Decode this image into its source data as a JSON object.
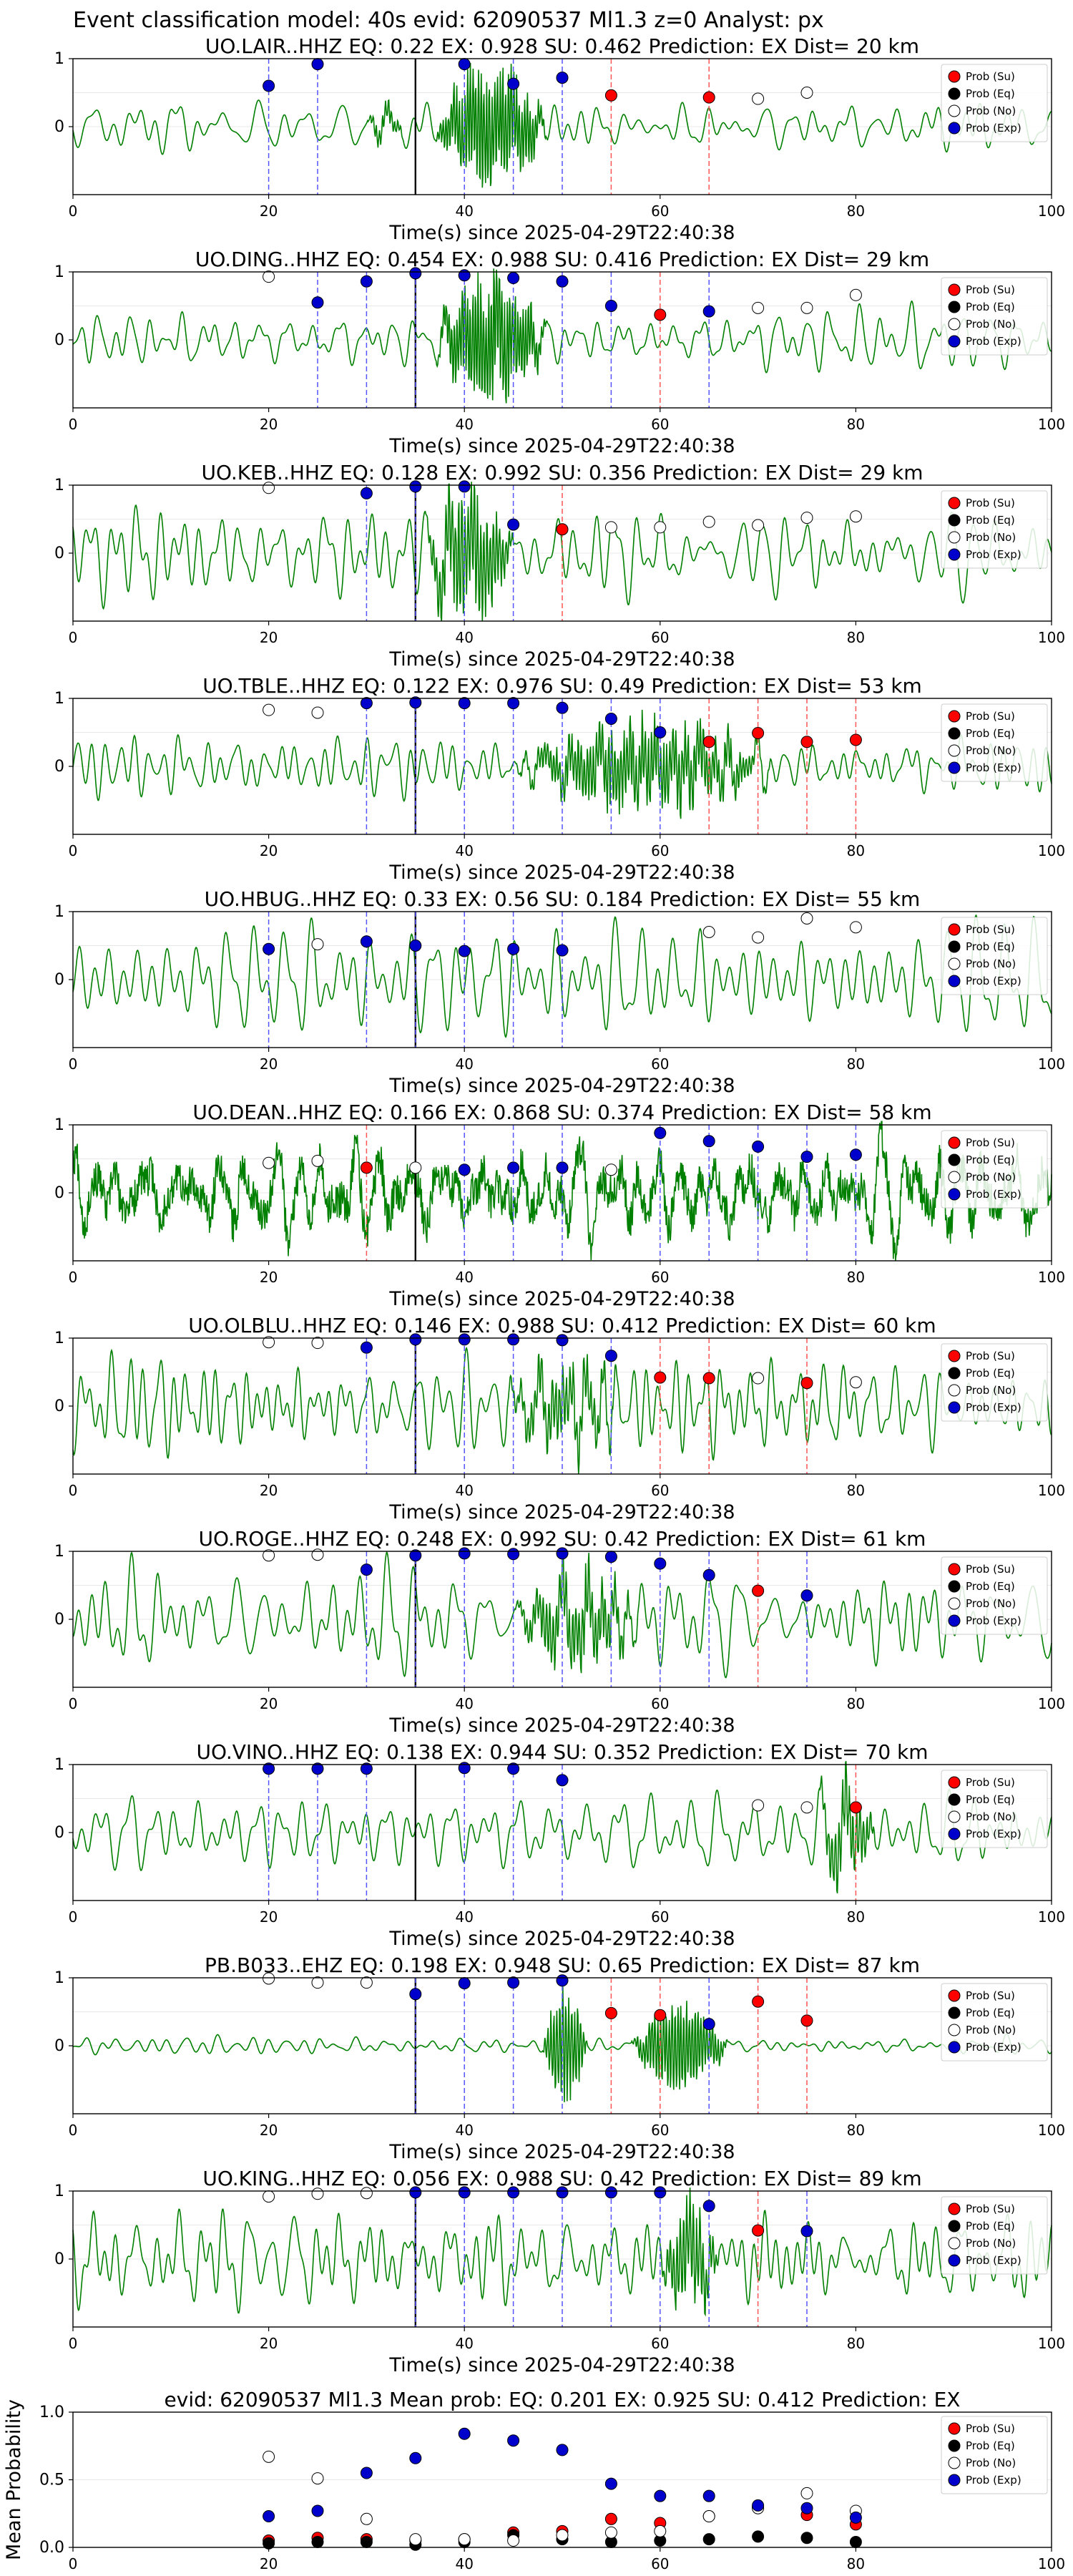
{
  "figure_title": "Event classification model: 40s evid: 62090537 Ml1.3 z=0 Analyst: px",
  "colors": {
    "waveform": "#008000",
    "su": "#ff0000",
    "eq": "#000000",
    "no": "#ffffff",
    "exp": "#0000cc",
    "arrival": "#000000"
  },
  "legend_labels": [
    "Prob (Su)",
    "Prob (Eq)",
    "Prob (No)",
    "Prob (Exp)"
  ],
  "chart_data": [
    {
      "type": "line",
      "title": "UO.LAIR..HHZ   EQ: 0.22  EX: 0.928  SU: 0.462   Prediction: EX    Dist= 20 km",
      "xlabel": "Time(s) since 2025-04-29T22:40:38",
      "xlim": [
        0,
        100
      ],
      "ylim": [
        -1,
        1
      ],
      "xticks": [
        "0",
        "20",
        "40",
        "60",
        "80",
        "100"
      ],
      "yticks": [
        "0",
        "1"
      ],
      "arrival_time": 35,
      "noise_amp": 0.28,
      "seed": 11,
      "envelope": [
        [
          30,
          35,
          0.2,
          0.5
        ],
        [
          37,
          52,
          1.0,
          0.7
        ]
      ],
      "series": [
        {
          "name": "Prob (Su)",
          "x": [
            55,
            65
          ],
          "y": [
            0.46,
            0.43
          ]
        },
        {
          "name": "Prob (Eq)",
          "x": [],
          "y": []
        },
        {
          "name": "Prob (No)",
          "x": [
            70,
            75
          ],
          "y": [
            0.41,
            0.5
          ]
        },
        {
          "name": "Prob (Exp)",
          "x": [
            20,
            25,
            40,
            45,
            50
          ],
          "y": [
            0.6,
            0.92,
            0.92,
            0.63,
            0.72
          ]
        }
      ]
    },
    {
      "type": "line",
      "title": "UO.DING..HHZ   EQ: 0.454  EX: 0.988  SU: 0.416   Prediction: EX    Dist= 29 km",
      "xlabel": "Time(s) since 2025-04-29T22:40:38",
      "xlim": [
        0,
        100
      ],
      "ylim": [
        -1,
        1
      ],
      "xticks": [
        "0",
        "20",
        "40",
        "60",
        "80",
        "100"
      ],
      "yticks": [
        "0",
        "1"
      ],
      "arrival_time": 35,
      "noise_amp": 0.3,
      "seed": 23,
      "envelope": [
        [
          37,
          52,
          1.0,
          0.75
        ]
      ],
      "series": [
        {
          "name": "Prob (Su)",
          "x": [
            60
          ],
          "y": [
            0.37
          ]
        },
        {
          "name": "Prob (Eq)",
          "x": [],
          "y": []
        },
        {
          "name": "Prob (No)",
          "x": [
            20,
            70,
            75,
            80
          ],
          "y": [
            0.93,
            0.47,
            0.47,
            0.66
          ]
        },
        {
          "name": "Prob (Exp)",
          "x": [
            25,
            30,
            35,
            40,
            45,
            50,
            55,
            65
          ],
          "y": [
            0.55,
            0.86,
            0.98,
            0.95,
            0.91,
            0.86,
            0.5,
            0.42
          ]
        }
      ]
    },
    {
      "type": "line",
      "title": "UO.KEB..HHZ   EQ: 0.128  EX: 0.992  SU: 0.356   Prediction: EX    Dist= 29 km",
      "xlabel": "Time(s) since 2025-04-29T22:40:38",
      "xlim": [
        0,
        100
      ],
      "ylim": [
        -1,
        1
      ],
      "xticks": [
        "0",
        "20",
        "40",
        "60",
        "80",
        "100"
      ],
      "yticks": [
        "0",
        "1"
      ],
      "arrival_time": 35,
      "noise_amp": 0.55,
      "seed": 37,
      "envelope": [
        [
          36,
          48,
          1.0,
          0.45
        ]
      ],
      "series": [
        {
          "name": "Prob (Su)",
          "x": [
            50
          ],
          "y": [
            0.35
          ]
        },
        {
          "name": "Prob (Eq)",
          "x": [],
          "y": []
        },
        {
          "name": "Prob (No)",
          "x": [
            20,
            55,
            60,
            65,
            70,
            75,
            80
          ],
          "y": [
            0.96,
            0.38,
            0.38,
            0.46,
            0.41,
            0.52,
            0.54
          ]
        },
        {
          "name": "Prob (Exp)",
          "x": [
            30,
            35,
            40,
            45
          ],
          "y": [
            0.88,
            0.98,
            0.98,
            0.42
          ]
        }
      ]
    },
    {
      "type": "line",
      "title": "UO.TBLE..HHZ   EQ: 0.122  EX: 0.976  SU: 0.49   Prediction: EX    Dist= 53 km",
      "xlabel": "Time(s) since 2025-04-29T22:40:38",
      "xlim": [
        0,
        100
      ],
      "ylim": [
        -1,
        1
      ],
      "xticks": [
        "0",
        "20",
        "40",
        "60",
        "80",
        "100"
      ],
      "yticks": [
        "0",
        "1"
      ],
      "arrival_time": 35,
      "noise_amp": 0.3,
      "seed": 41,
      "envelope": [
        [
          45,
          80,
          0.6,
          0.5
        ]
      ],
      "series": [
        {
          "name": "Prob (Su)",
          "x": [
            65,
            70,
            75,
            80
          ],
          "y": [
            0.36,
            0.49,
            0.36,
            0.39
          ]
        },
        {
          "name": "Prob (Eq)",
          "x": [],
          "y": []
        },
        {
          "name": "Prob (No)",
          "x": [
            20,
            25
          ],
          "y": [
            0.83,
            0.79
          ]
        },
        {
          "name": "Prob (Exp)",
          "x": [
            30,
            35,
            40,
            45,
            50,
            55,
            60
          ],
          "y": [
            0.93,
            0.94,
            0.93,
            0.93,
            0.86,
            0.7,
            0.5
          ]
        }
      ]
    },
    {
      "type": "line",
      "title": "UO.HBUG..HHZ   EQ: 0.33  EX: 0.56  SU: 0.184   Prediction: EX    Dist= 55 km",
      "xlabel": "Time(s) since 2025-04-29T22:40:38",
      "xlim": [
        0,
        100
      ],
      "ylim": [
        -1,
        1
      ],
      "xticks": [
        "0",
        "20",
        "40",
        "60",
        "80",
        "100"
      ],
      "yticks": [
        "0",
        "1"
      ],
      "arrival_time": 35,
      "noise_amp": 0.6,
      "seed": 53,
      "envelope": [],
      "series": [
        {
          "name": "Prob (Su)",
          "x": [],
          "y": []
        },
        {
          "name": "Prob (Eq)",
          "x": [],
          "y": []
        },
        {
          "name": "Prob (No)",
          "x": [
            25,
            65,
            70,
            75,
            80
          ],
          "y": [
            0.52,
            0.7,
            0.62,
            0.9,
            0.77
          ]
        },
        {
          "name": "Prob (Exp)",
          "x": [
            20,
            30,
            35,
            40,
            45,
            50
          ],
          "y": [
            0.45,
            0.56,
            0.5,
            0.42,
            0.45,
            0.43
          ]
        }
      ]
    },
    {
      "type": "line",
      "title": "UO.DEAN..HHZ   EQ: 0.166  EX: 0.868  SU: 0.374   Prediction: EX    Dist= 58 km",
      "xlabel": "Time(s) since 2025-04-29T22:40:38",
      "xlim": [
        0,
        100
      ],
      "ylim": [
        -1,
        1
      ],
      "xticks": [
        "0",
        "20",
        "40",
        "60",
        "80",
        "100"
      ],
      "yticks": [
        "0",
        "1"
      ],
      "arrival_time": 35,
      "noise_amp": 0.5,
      "seed": 67,
      "hf_amp": 0.38,
      "envelope": [],
      "series": [
        {
          "name": "Prob (Su)",
          "x": [
            30
          ],
          "y": [
            0.37
          ]
        },
        {
          "name": "Prob (Eq)",
          "x": [],
          "y": []
        },
        {
          "name": "Prob (No)",
          "x": [
            20,
            25,
            35,
            55
          ],
          "y": [
            0.44,
            0.47,
            0.37,
            0.34
          ]
        },
        {
          "name": "Prob (Exp)",
          "x": [
            40,
            45,
            50,
            60,
            65,
            70,
            75,
            80
          ],
          "y": [
            0.34,
            0.37,
            0.37,
            0.88,
            0.76,
            0.68,
            0.53,
            0.56
          ]
        }
      ]
    },
    {
      "type": "line",
      "title": "UO.OLBLU..HHZ   EQ: 0.146  EX: 0.988  SU: 0.412   Prediction: EX    Dist= 60 km",
      "xlabel": "Time(s) since 2025-04-29T22:40:38",
      "xlim": [
        0,
        100
      ],
      "ylim": [
        -1,
        1
      ],
      "xticks": [
        "0",
        "20",
        "40",
        "60",
        "80",
        "100"
      ],
      "yticks": [
        "0",
        "1"
      ],
      "arrival_time": 35,
      "noise_amp": 0.55,
      "seed": 71,
      "envelope": [
        [
          44,
          60,
          0.5,
          0.3
        ]
      ],
      "series": [
        {
          "name": "Prob (Su)",
          "x": [
            60,
            65,
            75
          ],
          "y": [
            0.42,
            0.41,
            0.34
          ]
        },
        {
          "name": "Prob (Eq)",
          "x": [],
          "y": []
        },
        {
          "name": "Prob (No)",
          "x": [
            20,
            25,
            70,
            80
          ],
          "y": [
            0.94,
            0.93,
            0.41,
            0.35
          ]
        },
        {
          "name": "Prob (Exp)",
          "x": [
            30,
            35,
            40,
            45,
            50,
            55
          ],
          "y": [
            0.86,
            0.98,
            0.98,
            0.98,
            0.97,
            0.74
          ]
        }
      ]
    },
    {
      "type": "line",
      "title": "UO.ROGE..HHZ   EQ: 0.248  EX: 0.992  SU: 0.42   Prediction: EX    Dist= 61 km",
      "xlabel": "Time(s) since 2025-04-29T22:40:38",
      "xlim": [
        0,
        100
      ],
      "ylim": [
        -1,
        1
      ],
      "xticks": [
        "0",
        "20",
        "40",
        "60",
        "80",
        "100"
      ],
      "yticks": [
        "0",
        "1"
      ],
      "arrival_time": 35,
      "noise_amp": 0.55,
      "seed": 83,
      "envelope": [
        [
          45,
          62,
          0.6,
          0.4
        ]
      ],
      "series": [
        {
          "name": "Prob (Su)",
          "x": [
            70
          ],
          "y": [
            0.42
          ]
        },
        {
          "name": "Prob (Eq)",
          "x": [],
          "y": []
        },
        {
          "name": "Prob (No)",
          "x": [
            20,
            25
          ],
          "y": [
            0.94,
            0.95
          ]
        },
        {
          "name": "Prob (Exp)",
          "x": [
            30,
            35,
            40,
            45,
            50,
            55,
            60,
            65,
            75
          ],
          "y": [
            0.73,
            0.94,
            0.97,
            0.96,
            0.97,
            0.92,
            0.82,
            0.65,
            0.35
          ]
        }
      ]
    },
    {
      "type": "line",
      "title": "UO.VINO..HHZ   EQ: 0.138  EX: 0.944  SU: 0.352   Prediction: EX    Dist= 70 km",
      "xlabel": "Time(s) since 2025-04-29T22:40:38",
      "xlim": [
        0,
        100
      ],
      "ylim": [
        -1,
        1
      ],
      "xticks": [
        "0",
        "20",
        "40",
        "60",
        "80",
        "100"
      ],
      "yticks": [
        "0",
        "1"
      ],
      "arrival_time": 35,
      "noise_amp": 0.45,
      "seed": 97,
      "envelope": [
        [
          76,
          84,
          0.6,
          0.3
        ]
      ],
      "series": [
        {
          "name": "Prob (Su)",
          "x": [
            80
          ],
          "y": [
            0.37
          ]
        },
        {
          "name": "Prob (Eq)",
          "x": [],
          "y": []
        },
        {
          "name": "Prob (No)",
          "x": [
            70,
            75
          ],
          "y": [
            0.4,
            0.37
          ]
        },
        {
          "name": "Prob (Exp)",
          "x": [
            20,
            25,
            30,
            40,
            45,
            50
          ],
          "y": [
            0.94,
            0.94,
            0.94,
            0.95,
            0.94,
            0.77
          ]
        }
      ]
    },
    {
      "type": "line",
      "title": "PB.B033..EHZ   EQ: 0.198  EX: 0.948  SU: 0.65   Prediction: EX    Dist= 87 km",
      "xlabel": "Time(s) since 2025-04-29T22:40:38",
      "xlim": [
        0,
        100
      ],
      "ylim": [
        -1,
        1
      ],
      "xticks": [
        "0",
        "20",
        "40",
        "60",
        "80",
        "100"
      ],
      "yticks": [
        "0",
        "1"
      ],
      "arrival_time": 35,
      "noise_amp": 0.1,
      "seed": 103,
      "envelope": [
        [
          48,
          54,
          0.95,
          0.55
        ],
        [
          57,
          70,
          0.7,
          0.6
        ]
      ],
      "series": [
        {
          "name": "Prob (Su)",
          "x": [
            55,
            60,
            70,
            75
          ],
          "y": [
            0.48,
            0.45,
            0.65,
            0.37
          ]
        },
        {
          "name": "Prob (Eq)",
          "x": [],
          "y": []
        },
        {
          "name": "Prob (No)",
          "x": [
            20,
            25,
            30
          ],
          "y": [
            0.99,
            0.93,
            0.93
          ]
        },
        {
          "name": "Prob (Exp)",
          "x": [
            35,
            40,
            45,
            50,
            65
          ],
          "y": [
            0.76,
            0.92,
            0.93,
            0.96,
            0.32
          ]
        }
      ]
    },
    {
      "type": "line",
      "title": "UO.KING..HHZ   EQ: 0.056  EX: 0.988  SU: 0.42   Prediction: EX    Dist= 89 km",
      "xlabel": "Time(s) since 2025-04-29T22:40:38",
      "xlim": [
        0,
        100
      ],
      "ylim": [
        -1,
        1
      ],
      "xticks": [
        "0",
        "20",
        "40",
        "60",
        "80",
        "100"
      ],
      "yticks": [
        "0",
        "1"
      ],
      "arrival_time": 35,
      "noise_amp": 0.55,
      "seed": 109,
      "envelope": [
        [
          60,
          68,
          0.8,
          0.4
        ]
      ],
      "series": [
        {
          "name": "Prob (Su)",
          "x": [
            70
          ],
          "y": [
            0.42
          ]
        },
        {
          "name": "Prob (Eq)",
          "x": [],
          "y": []
        },
        {
          "name": "Prob (No)",
          "x": [
            20,
            25,
            30
          ],
          "y": [
            0.92,
            0.96,
            0.97
          ]
        },
        {
          "name": "Prob (Exp)",
          "x": [
            35,
            40,
            45,
            50,
            55,
            60,
            65,
            75
          ],
          "y": [
            0.98,
            0.98,
            0.98,
            0.98,
            0.98,
            0.98,
            0.78,
            0.41
          ]
        }
      ]
    },
    {
      "type": "scatter",
      "title": "evid: 62090537  Ml1.3   Mean prob:   EQ: 0.201  EX: 0.925  SU: 0.412   Prediction: EX",
      "xlabel": "",
      "ylabel": "Mean Probability",
      "xlim": [
        0,
        100
      ],
      "ylim": [
        0,
        1
      ],
      "xticks": [
        "0",
        "20",
        "40",
        "60",
        "80",
        "100"
      ],
      "yticks": [
        "0.0",
        "0.5",
        "1.0"
      ],
      "series": [
        {
          "name": "Prob (Su)",
          "x": [
            20,
            25,
            30,
            35,
            40,
            45,
            50,
            55,
            60,
            65,
            70,
            75,
            80
          ],
          "y": [
            0.05,
            0.07,
            0.06,
            0.05,
            0.06,
            0.11,
            0.12,
            0.21,
            0.18,
            0.23,
            0.3,
            0.24,
            0.17
          ]
        },
        {
          "name": "Prob (Eq)",
          "x": [
            20,
            25,
            30,
            35,
            40,
            45,
            50,
            55,
            60,
            65,
            70,
            75,
            80
          ],
          "y": [
            0.03,
            0.04,
            0.04,
            0.02,
            0.04,
            0.09,
            0.06,
            0.04,
            0.05,
            0.06,
            0.08,
            0.07,
            0.04
          ]
        },
        {
          "name": "Prob (No)",
          "x": [
            20,
            25,
            30,
            35,
            40,
            45,
            50,
            55,
            60,
            65,
            70,
            75,
            80
          ],
          "y": [
            0.67,
            0.51,
            0.21,
            0.06,
            0.06,
            0.05,
            0.09,
            0.11,
            0.12,
            0.23,
            0.29,
            0.4,
            0.27
          ]
        },
        {
          "name": "Prob (Exp)",
          "x": [
            20,
            25,
            30,
            35,
            40,
            45,
            50,
            55,
            60,
            65,
            70,
            75,
            80
          ],
          "y": [
            0.23,
            0.27,
            0.55,
            0.66,
            0.84,
            0.79,
            0.72,
            0.47,
            0.38,
            0.38,
            0.31,
            0.29,
            0.22
          ]
        }
      ]
    }
  ]
}
